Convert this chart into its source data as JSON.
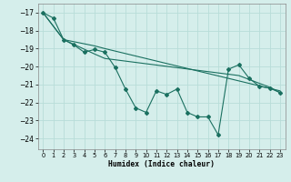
{
  "background_color": "#d5eeeb",
  "grid_color": "#b8ddd8",
  "line_color": "#1a7060",
  "xlabel": "Humidex (Indice chaleur)",
  "xlim": [
    -0.5,
    23.5
  ],
  "ylim": [
    -24.6,
    -16.5
  ],
  "yticks": [
    -24,
    -23,
    -22,
    -21,
    -20,
    -19,
    -18,
    -17
  ],
  "xticks": [
    0,
    1,
    2,
    3,
    4,
    5,
    6,
    7,
    8,
    9,
    10,
    11,
    12,
    13,
    14,
    15,
    16,
    17,
    18,
    19,
    20,
    21,
    22,
    23
  ],
  "line_main_x": [
    0,
    1,
    2,
    3,
    4,
    5,
    6,
    7,
    8,
    9,
    10,
    11,
    12,
    13,
    14,
    15,
    16,
    17,
    18,
    19,
    20,
    21,
    22,
    23
  ],
  "line_main_y": [
    -17.0,
    -17.3,
    -18.5,
    -18.8,
    -19.2,
    -19.05,
    -19.2,
    -20.05,
    -21.25,
    -22.3,
    -22.55,
    -21.35,
    -21.55,
    -21.25,
    -22.55,
    -22.8,
    -22.8,
    -23.8,
    -20.15,
    -19.9,
    -20.65,
    -21.1,
    -21.2,
    -21.45
  ],
  "line_upper_x": [
    0,
    2,
    5,
    6,
    23
  ],
  "line_upper_y": [
    -17.0,
    -18.5,
    -18.85,
    -19.0,
    -21.35
  ],
  "line_lower_x": [
    0,
    2,
    5,
    6,
    19,
    22,
    23
  ],
  "line_lower_y": [
    -17.0,
    -18.5,
    -19.3,
    -19.55,
    -20.5,
    -21.15,
    -21.45
  ]
}
